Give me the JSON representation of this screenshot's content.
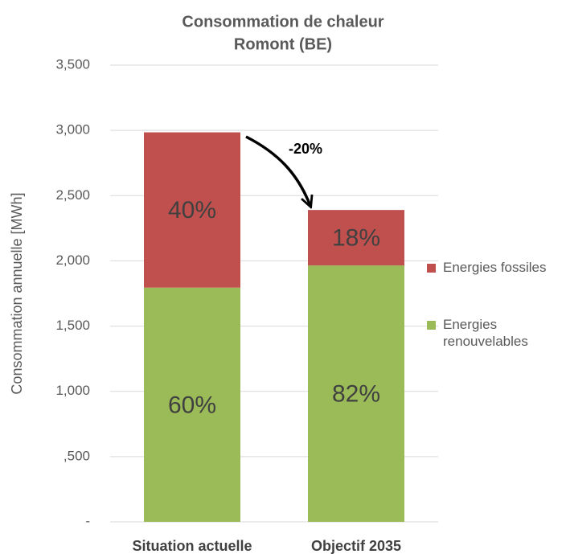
{
  "chart_data": {
    "type": "stacked_bar",
    "title": "Consommation  de chaleur",
    "subtitle": "Romont (BE)",
    "y_axis_label": "Consommation annuelle [MWh]",
    "annotation": "-20%",
    "categories": [
      "Situation actuelle",
      "Objectif 2035"
    ],
    "series": [
      {
        "name": "Energies renouvelables",
        "color": "#9bbb59",
        "values": [
          1795,
          1965
        ],
        "value_labels": [
          "60%",
          "82%"
        ]
      },
      {
        "name": "Energies fossiles",
        "color": "#c0504d",
        "values": [
          1190,
          425
        ],
        "value_labels": [
          "40%",
          "18%"
        ]
      }
    ],
    "ylim": [
      0,
      3500
    ],
    "yticks": [
      {
        "value": 0,
        "label": "-"
      },
      {
        "value": 500,
        "label": ",500"
      },
      {
        "value": 1000,
        "label": "1,000"
      },
      {
        "value": 1500,
        "label": "1,500"
      },
      {
        "value": 2000,
        "label": "2,000"
      },
      {
        "value": 2500,
        "label": "2,500"
      },
      {
        "value": 3000,
        "label": "3,000"
      },
      {
        "value": 3500,
        "label": "3,500"
      }
    ],
    "grid": true,
    "legend": "right"
  }
}
